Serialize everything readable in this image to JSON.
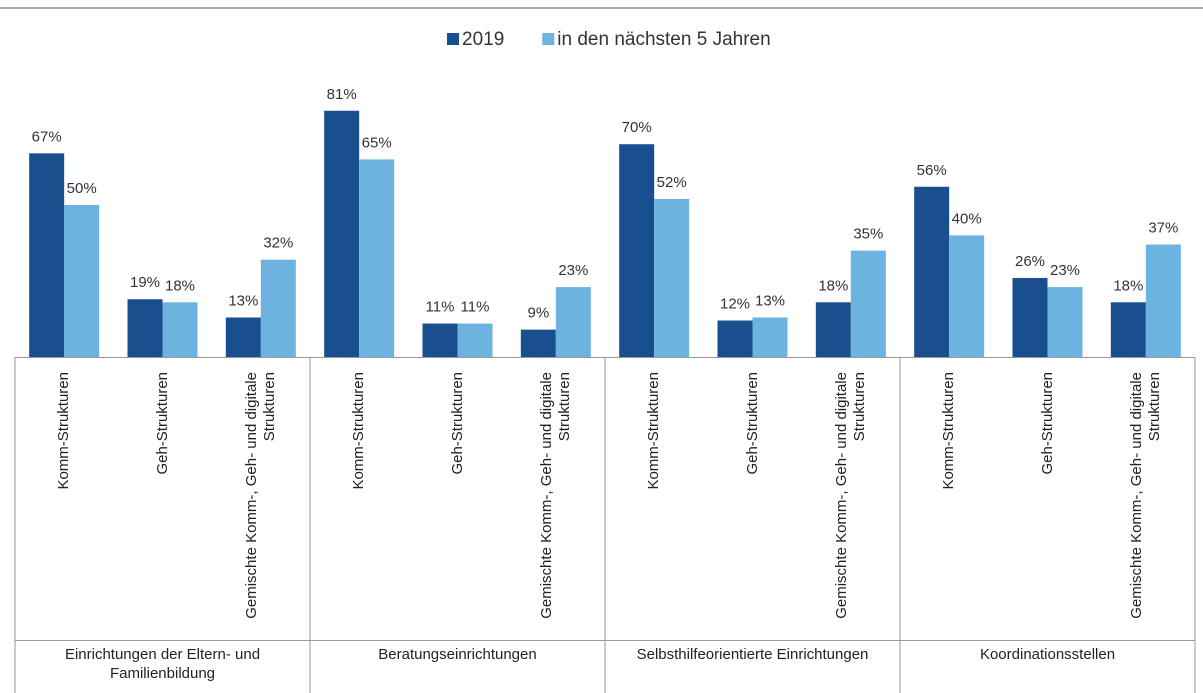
{
  "chart_data": {
    "type": "bar",
    "groups": [
      "Einrichtungen der Eltern- und Familienbildung",
      "Beratungseinrichtungen",
      "Selbsthilfeorientierte Einrichtungen",
      "Koordinationsstellen"
    ],
    "categories": [
      "Komm-Strukturen",
      "Geh-Strukturen",
      "Gemischte Komm-, Geh- und digitale Strukturen",
      "Komm-Strukturen",
      "Geh-Strukturen",
      "Gemischte Komm-, Geh- und digitale Strukturen",
      "Komm-Strukturen",
      "Geh-Strukturen",
      "Gemischte Komm-, Geh- und digitale Strukturen",
      "Komm-Strukturen",
      "Geh-Strukturen",
      "Gemischte Komm-, Geh- und digitale Strukturen"
    ],
    "series": [
      {
        "name": "2019",
        "color": "#1a4f8f",
        "values": [
          67,
          19,
          13,
          81,
          11,
          9,
          70,
          12,
          18,
          56,
          26,
          18
        ],
        "value_labels": [
          "67%",
          "19%",
          "13%",
          "81%",
          "11%",
          "9%",
          "70%",
          "12%",
          "18%",
          "56%",
          "26%",
          "18%"
        ]
      },
      {
        "name": "in den nächsten 5 Jahren",
        "color": "#6db3e0",
        "values": [
          50,
          18,
          32,
          65,
          11,
          23,
          52,
          13,
          35,
          40,
          23,
          37
        ],
        "value_labels": [
          "50%",
          "18%",
          "32%",
          "65%",
          "11%",
          "23%",
          "52%",
          "13%",
          "35%",
          "40%",
          "23%",
          "37%"
        ]
      }
    ],
    "legend": "top"
  }
}
